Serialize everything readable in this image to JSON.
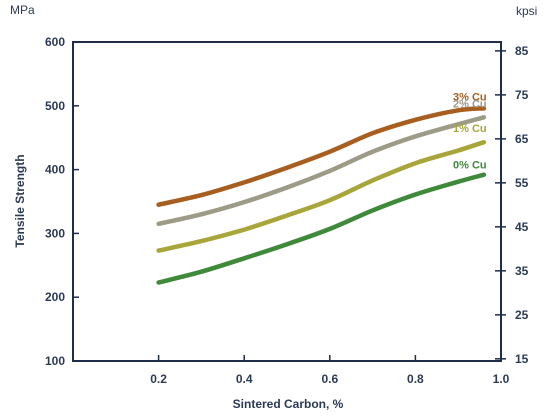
{
  "chart_data": {
    "type": "line",
    "xlabel": "Sintered Carbon, %",
    "ylabel": "Tensile Strength",
    "y_unit_left": "MPa",
    "y_unit_right": "kpsi",
    "xlim": [
      0.0,
      1.0
    ],
    "ylim": [
      100,
      600
    ],
    "x_ticks": [
      0.2,
      0.4,
      0.6,
      0.8,
      1.0
    ],
    "x_tick_labels": [
      "0.2",
      "0.4",
      "0.6",
      "0.8",
      "1.0"
    ],
    "y_ticks": [
      100,
      200,
      300,
      400,
      500,
      600
    ],
    "y_tick_labels": [
      "100",
      "200",
      "300",
      "400",
      "500",
      "600"
    ],
    "y2_ticks": [
      15,
      25,
      35,
      45,
      55,
      65,
      75,
      85
    ],
    "y2_tick_labels": [
      "15",
      "25",
      "35",
      "45",
      "55",
      "65",
      "75",
      "85"
    ],
    "y2_conversion_mpa_per_kpsi": 6.895,
    "grid": false,
    "series": [
      {
        "name": "3% Cu",
        "color": "#a85e1f",
        "x": [
          0.2,
          0.3,
          0.4,
          0.5,
          0.6,
          0.7,
          0.8,
          0.9,
          0.96
        ],
        "y": [
          345,
          360,
          380,
          403,
          428,
          457,
          478,
          493,
          496
        ]
      },
      {
        "name": "2% Cu",
        "color": "#9d9a86",
        "x": [
          0.2,
          0.3,
          0.4,
          0.5,
          0.6,
          0.7,
          0.8,
          0.9,
          0.96
        ],
        "y": [
          315,
          330,
          349,
          372,
          398,
          428,
          452,
          471,
          482
        ]
      },
      {
        "name": "1% Cu",
        "color": "#a8a63a",
        "x": [
          0.2,
          0.3,
          0.4,
          0.5,
          0.6,
          0.7,
          0.8,
          0.9,
          0.96
        ],
        "y": [
          273,
          288,
          306,
          328,
          352,
          383,
          410,
          430,
          443
        ]
      },
      {
        "name": "0% Cu",
        "color": "#3f8a3a",
        "x": [
          0.2,
          0.3,
          0.4,
          0.5,
          0.6,
          0.7,
          0.8,
          0.9,
          0.96
        ],
        "y": [
          223,
          240,
          261,
          283,
          307,
          336,
          361,
          381,
          392
        ]
      }
    ]
  },
  "colors": {
    "axis": "#1f2d4a",
    "text": "#2b3a55"
  }
}
